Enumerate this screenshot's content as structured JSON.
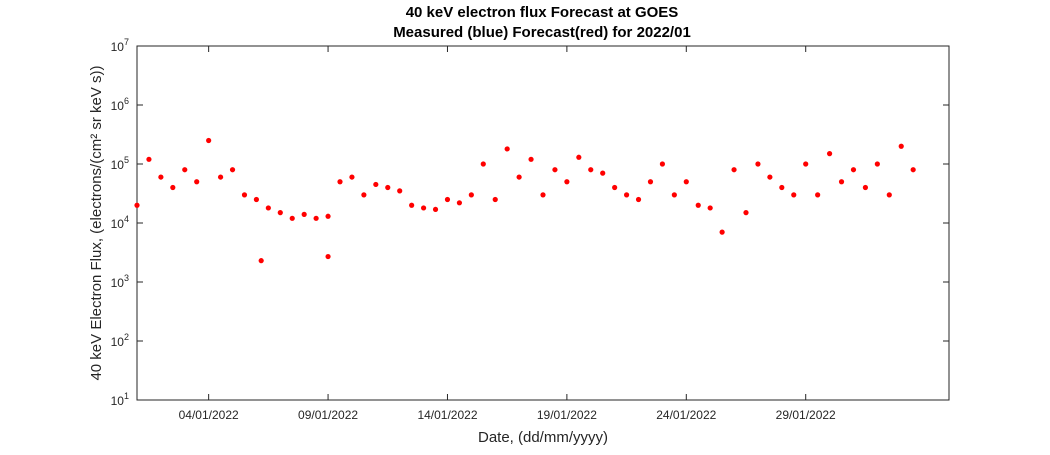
{
  "chart_data": {
    "type": "scatter",
    "title": "40 keV electron flux Forecast at GOES",
    "subtitle": "Measured (blue) Forecast(red) for 2022/01",
    "xlabel": "Date, (dd/mm/yyyy)",
    "ylabel": "40 keV Electron Flux, (electrons/(cm² sr keV s))",
    "yscale": "log",
    "ylim": [
      10,
      10000000
    ],
    "xlim": [
      "2022-01-01",
      "2022-02-04"
    ],
    "grid": false,
    "marker_color": "#ff0000",
    "x_ticks": [
      "04/01/2022",
      "09/01/2022",
      "14/01/2022",
      "19/01/2022",
      "24/01/2022",
      "29/01/2022"
    ],
    "y_ticks": [
      "10^1",
      "10^2",
      "10^3",
      "10^4",
      "10^5",
      "10^6",
      "10^7"
    ],
    "series": [
      {
        "x": [
          "2022-01-01",
          "2022-01-01.5",
          "2022-01-02",
          "2022-01-02.5",
          "2022-01-03",
          "2022-01-03.5",
          "2022-01-04",
          "2022-01-04.5",
          "2022-01-05",
          "2022-01-05.5",
          "2022-01-06",
          "2022-01-06.5",
          "2022-01-07",
          "2022-01-07.5",
          "2022-01-08",
          "2022-01-08.5",
          "2022-01-09",
          "2022-01-09.5",
          "2022-01-10",
          "2022-01-10.5",
          "2022-01-11",
          "2022-01-11.5",
          "2022-01-12",
          "2022-01-12.5",
          "2022-01-13",
          "2022-01-13.5",
          "2022-01-14",
          "2022-01-14.5",
          "2022-01-15",
          "2022-01-15.5",
          "2022-01-16",
          "2022-01-16.5",
          "2022-01-17",
          "2022-01-17.5",
          "2022-01-18",
          "2022-01-18.5",
          "2022-01-19",
          "2022-01-19.5",
          "2022-01-20",
          "2022-01-20.5",
          "2022-01-21",
          "2022-01-21.5",
          "2022-01-22",
          "2022-01-22.5",
          "2022-01-23",
          "2022-01-23.5",
          "2022-01-24",
          "2022-01-24.5",
          "2022-01-25",
          "2022-01-25.5",
          "2022-01-26",
          "2022-01-26.5",
          "2022-01-27",
          "2022-01-27.5",
          "2022-01-28",
          "2022-01-28.5",
          "2022-01-29",
          "2022-01-29.5",
          "2022-01-30",
          "2022-01-30.5",
          "2022-01-31",
          "2022-01-31.5",
          "2022-02-01",
          "2022-02-01.5",
          "2022-02-02",
          "2022-02-02.5",
          "2022-01-06.2",
          "2022-01-09.0"
        ],
        "values": [
          20000,
          120000,
          60000,
          40000,
          80000,
          50000,
          250000,
          60000,
          80000,
          30000,
          25000,
          18000,
          15000,
          12000,
          14000,
          12000,
          13000,
          50000,
          60000,
          30000,
          45000,
          40000,
          35000,
          20000,
          18000,
          17000,
          25000,
          22000,
          30000,
          100000,
          25000,
          180000,
          60000,
          120000,
          30000,
          80000,
          50000,
          130000,
          80000,
          70000,
          40000,
          30000,
          25000,
          50000,
          100000,
          30000,
          50000,
          20000,
          18000,
          7000,
          80000,
          15000,
          100000,
          60000,
          40000,
          30000,
          100000,
          30000,
          150000,
          50000,
          80000,
          40000,
          100000,
          30000,
          200000,
          80000,
          2300,
          2700
        ]
      }
    ]
  }
}
